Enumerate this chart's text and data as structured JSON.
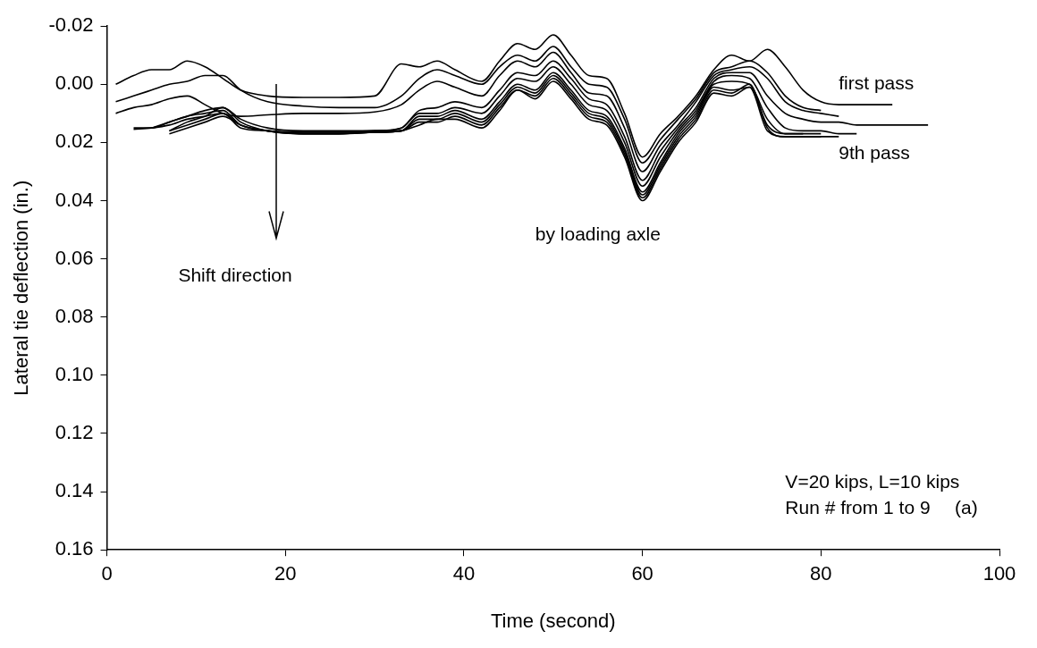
{
  "chart_data": {
    "type": "line",
    "xlabel": "Time (second)",
    "ylabel": "Lateral tie deflection (in.)",
    "x": [
      1,
      3,
      5,
      7,
      9,
      11,
      13,
      15,
      18,
      22,
      26,
      30,
      33,
      35,
      37,
      39,
      42,
      44,
      46,
      48,
      50,
      52,
      54,
      56,
      58,
      60,
      62,
      64,
      66,
      68,
      70,
      72,
      74,
      76,
      78,
      80,
      82,
      84,
      86,
      88,
      90,
      92
    ],
    "series": [
      {
        "color": "#000000",
        "values": [
          0.0,
          -0.003,
          -0.005,
          -0.005,
          -0.008,
          -0.006,
          -0.002,
          0.002,
          0.004,
          0.0045,
          0.0045,
          0.004,
          -0.007,
          -0.006,
          -0.008,
          -0.005,
          -0.001,
          -0.008,
          -0.014,
          -0.012,
          -0.017,
          -0.01,
          -0.003,
          -0.002,
          0.01,
          0.025,
          0.017,
          0.011,
          0.004,
          -0.005,
          -0.01,
          -0.008,
          -0.012,
          -0.006,
          0.002,
          0.006,
          0.007,
          0.007,
          0.007,
          0.007,
          null,
          null
        ]
      },
      {
        "color": "#000000",
        "values": [
          0.006,
          0.004,
          0.002,
          0.0,
          -0.001,
          -0.003,
          -0.003,
          0.002,
          0.006,
          0.0075,
          0.008,
          0.008,
          0.004,
          -0.002,
          -0.005,
          -0.003,
          0.0,
          -0.006,
          -0.01,
          -0.008,
          -0.013,
          -0.006,
          0.0,
          0.001,
          0.012,
          0.027,
          0.019,
          0.012,
          0.005,
          -0.004,
          -0.006,
          -0.008,
          -0.004,
          0.004,
          0.008,
          0.009,
          null,
          null,
          null,
          null,
          null,
          null
        ]
      },
      {
        "color": "#000000",
        "values": [
          0.01,
          0.008,
          0.007,
          0.005,
          0.004,
          0.007,
          0.01,
          0.011,
          0.0105,
          0.01,
          0.01,
          0.0095,
          0.007,
          0.002,
          -0.001,
          0.001,
          0.004,
          -0.003,
          -0.008,
          -0.006,
          -0.011,
          -0.004,
          0.003,
          0.004,
          0.015,
          0.03,
          0.021,
          0.014,
          0.006,
          -0.003,
          -0.005,
          -0.006,
          -0.002,
          0.006,
          0.009,
          0.01,
          0.011,
          null,
          null,
          null,
          null,
          null
        ]
      },
      {
        "color": "#000000",
        "values": [
          null,
          null,
          0.015,
          0.013,
          0.011,
          0.009,
          0.008,
          0.012,
          0.015,
          0.016,
          0.016,
          0.016,
          0.015,
          0.009,
          0.008,
          0.006,
          0.008,
          0.002,
          -0.004,
          -0.003,
          -0.008,
          -0.002,
          0.005,
          0.007,
          0.018,
          0.033,
          0.023,
          0.015,
          0.008,
          -0.002,
          -0.004,
          -0.004,
          0.004,
          0.01,
          0.012,
          0.013,
          0.013,
          0.014,
          0.014,
          0.014,
          0.014,
          0.014
        ]
      },
      {
        "color": "#000000",
        "values": [
          null,
          0.015,
          0.015,
          0.013,
          0.011,
          0.01,
          0.009,
          0.014,
          0.016,
          0.0165,
          0.0165,
          0.016,
          0.015,
          0.01,
          0.01,
          0.008,
          0.01,
          0.004,
          -0.002,
          -0.001,
          -0.006,
          0.0,
          0.007,
          0.009,
          0.02,
          0.035,
          0.025,
          0.016,
          0.009,
          -0.001,
          -0.003,
          -0.002,
          0.008,
          0.015,
          0.016,
          0.016,
          0.017,
          0.017,
          null,
          null,
          null,
          null
        ]
      },
      {
        "color": "#000000",
        "values": [
          null,
          null,
          null,
          0.016,
          0.013,
          0.011,
          0.008,
          0.013,
          0.016,
          0.017,
          0.017,
          0.0165,
          0.016,
          0.011,
          0.011,
          0.009,
          0.012,
          0.006,
          0.0,
          0.002,
          -0.004,
          0.002,
          0.009,
          0.011,
          0.022,
          0.037,
          0.027,
          0.017,
          0.01,
          0.0,
          -0.001,
          0.0,
          0.012,
          0.017,
          0.017,
          0.017,
          null,
          null,
          null,
          null,
          null,
          null
        ]
      },
      {
        "color": "#000000",
        "values": [
          null,
          null,
          null,
          0.016,
          0.014,
          0.012,
          0.01,
          0.014,
          0.016,
          0.017,
          0.017,
          0.0165,
          0.016,
          0.012,
          0.012,
          0.01,
          0.013,
          0.007,
          0.001,
          0.003,
          -0.003,
          0.003,
          0.01,
          0.012,
          0.023,
          0.038,
          0.028,
          0.018,
          0.011,
          0.001,
          0.002,
          0.001,
          0.014,
          0.017,
          0.017,
          null,
          null,
          null,
          null,
          null,
          null,
          null
        ]
      },
      {
        "color": "#000000",
        "values": [
          null,
          null,
          null,
          0.017,
          0.015,
          0.013,
          0.011,
          0.014,
          0.016,
          0.0165,
          0.0165,
          0.016,
          0.016,
          0.013,
          0.013,
          0.011,
          0.014,
          0.008,
          0.002,
          0.004,
          -0.002,
          0.004,
          0.011,
          0.013,
          0.024,
          0.039,
          0.029,
          0.019,
          0.012,
          0.002,
          0.003,
          0.0,
          0.015,
          0.018,
          0.018,
          0.018,
          null,
          null,
          null,
          null,
          null,
          null
        ]
      },
      {
        "color": "#000000",
        "values": [
          null,
          0.0155,
          0.015,
          0.014,
          0.012,
          0.011,
          0.01,
          0.015,
          0.016,
          0.017,
          0.017,
          0.0165,
          0.016,
          0.014,
          0.012,
          0.012,
          0.015,
          0.009,
          0.002,
          0.005,
          -0.001,
          0.005,
          0.012,
          0.014,
          0.025,
          0.04,
          0.03,
          0.02,
          0.013,
          0.003,
          0.004,
          0.001,
          0.016,
          0.018,
          0.018,
          0.018,
          0.018,
          null,
          null,
          null,
          null,
          null
        ]
      }
    ],
    "xlim": [
      0,
      100
    ],
    "xticks": [
      0,
      20,
      40,
      60,
      80,
      100
    ],
    "ylim": [
      0.16,
      -0.02
    ],
    "yticks": [
      {
        "value": -0.02,
        "label": "-0.02"
      },
      {
        "value": 0,
        "label": "0.00"
      },
      {
        "value": 0.02,
        "label": "0.02"
      },
      {
        "value": 0.04,
        "label": "0.04"
      },
      {
        "value": 0.06,
        "label": "0.06"
      },
      {
        "value": 0.08,
        "label": "0.08"
      },
      {
        "value": 0.1,
        "label": "0.10"
      },
      {
        "value": 0.12,
        "label": "0.12"
      },
      {
        "value": 0.14,
        "label": "0.14"
      },
      {
        "value": 0.16,
        "label": "0.16"
      }
    ],
    "annotations": [
      "first pass",
      "9th pass",
      "by loading axle",
      "Shift direction",
      "V=20 kips, L=10 kips",
      "Run # from 1 to 9",
      "(a)"
    ],
    "grid": false,
    "legend": false,
    "marker": "none",
    "line_style": "solid"
  }
}
